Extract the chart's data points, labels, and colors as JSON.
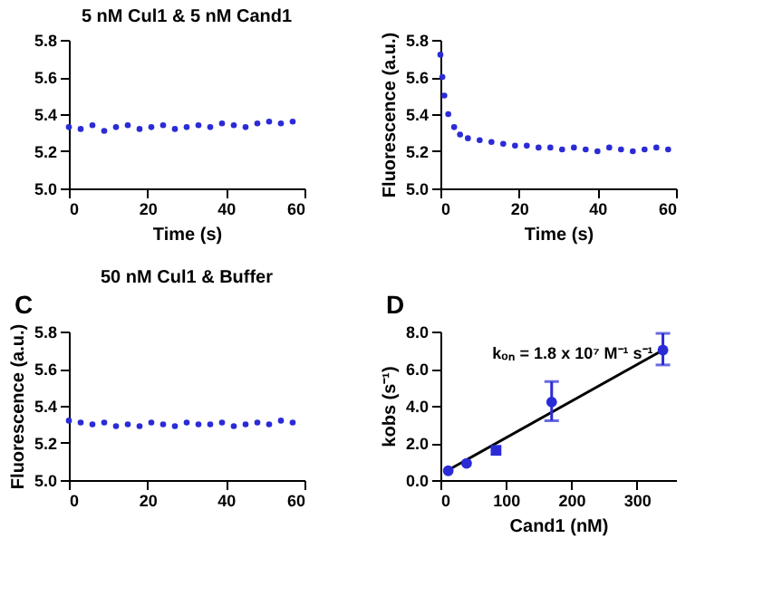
{
  "chart_data": [
    {
      "type": "scatter",
      "title": "5 nM Cul1 & 5 nM Cand1",
      "xlabel": "Time (s)",
      "xlim": [
        0,
        60
      ],
      "xticks": [
        0,
        20,
        40,
        60
      ],
      "ylim": [
        5.0,
        5.8
      ],
      "yticks": [
        {
          "value": 5,
          "label": "5.0"
        },
        5.2,
        5.4,
        5.6,
        5.8
      ],
      "marker": "circle",
      "grid": false,
      "series": [
        {
          "color": "#2b2bd6",
          "x": [
            0,
            3,
            6,
            9,
            12,
            15,
            18,
            21,
            24,
            27,
            30,
            33,
            36,
            39,
            42,
            45,
            48,
            51,
            54,
            57
          ],
          "values": [
            5.33,
            5.32,
            5.34,
            5.31,
            5.33,
            5.34,
            5.32,
            5.33,
            5.34,
            5.32,
            5.33,
            5.34,
            5.33,
            5.35,
            5.34,
            5.33,
            5.35,
            5.36,
            5.35,
            5.36
          ]
        }
      ]
    },
    {
      "type": "scatter",
      "xlabel": "Time (s)",
      "ylabel": "Fluorescence (a.u.)",
      "xlim": [
        0,
        60
      ],
      "xticks": [
        0,
        20,
        40,
        60
      ],
      "ylim": [
        5.0,
        5.8
      ],
      "yticks": [
        {
          "value": 5,
          "label": "5.0"
        },
        5.2,
        5.4,
        5.6,
        5.8
      ],
      "marker": "circle",
      "grid": false,
      "series": [
        {
          "color": "#2b2bd6",
          "x": [
            0,
            0.5,
            1,
            2,
            3.5,
            5,
            7,
            10,
            13,
            16,
            19,
            22,
            25,
            28,
            31,
            34,
            37,
            40,
            43,
            46,
            49,
            52,
            55,
            58
          ],
          "values": [
            5.72,
            5.6,
            5.5,
            5.4,
            5.33,
            5.29,
            5.27,
            5.26,
            5.25,
            5.24,
            5.23,
            5.23,
            5.22,
            5.22,
            5.21,
            5.22,
            5.21,
            5.2,
            5.22,
            5.21,
            5.2,
            5.21,
            5.22,
            5.21
          ]
        }
      ]
    },
    {
      "type": "scatter",
      "title": "50 nM Cul1 & Buffer",
      "ylabel": "Fluorescence (a.u.)",
      "xlim": [
        0,
        60
      ],
      "xticks": [
        0,
        20,
        40,
        60
      ],
      "ylim": [
        5.0,
        5.8
      ],
      "yticks": [
        {
          "value": 5,
          "label": "5.0"
        },
        5.2,
        5.4,
        5.6,
        5.8
      ],
      "marker": "circle",
      "grid": false,
      "annotations": [
        "C"
      ],
      "series": [
        {
          "color": "#2b2bd6",
          "x": [
            0,
            3,
            6,
            9,
            12,
            15,
            18,
            21,
            24,
            27,
            30,
            33,
            36,
            39,
            42,
            45,
            48,
            51,
            54,
            57
          ],
          "values": [
            5.32,
            5.31,
            5.3,
            5.31,
            5.29,
            5.3,
            5.29,
            5.31,
            5.3,
            5.29,
            5.31,
            5.3,
            5.3,
            5.31,
            5.29,
            5.3,
            5.31,
            5.3,
            5.32,
            5.31
          ]
        }
      ]
    },
    {
      "type": "scatter",
      "xlabel": "Cand1 (nM)",
      "ylabel": "kobs (s⁻¹)",
      "xlim": [
        0,
        360
      ],
      "xticks": [
        0,
        100,
        200,
        300
      ],
      "ylim": [
        0,
        8
      ],
      "yticks": [
        {
          "value": 0,
          "label": "0.0"
        },
        {
          "value": 2,
          "label": "2.0"
        },
        {
          "value": 4,
          "label": "4.0"
        },
        {
          "value": 6,
          "label": "6.0"
        },
        {
          "value": 8,
          "label": "8.0"
        }
      ],
      "grid": false,
      "annotations": [
        "D",
        "kₒₙ = 1.8 x 10⁷ M⁻¹ s⁻¹"
      ],
      "series": [
        {
          "type": "line",
          "color": "#000000",
          "marker": "none",
          "line_style": "solid",
          "x": [
            10,
            345
          ],
          "values": [
            0.5,
            7.1
          ]
        },
        {
          "color": "#2b2bd6",
          "marker": "circle",
          "x": [
            12,
            40,
            170,
            340
          ],
          "values": [
            0.5,
            0.9,
            4.2,
            7.0
          ],
          "errors": [
            null,
            null,
            [
              3.2,
              5.3
            ],
            [
              6.2,
              7.9
            ]
          ]
        },
        {
          "color": "#2b2bd6",
          "marker": "square",
          "x": [
            85
          ],
          "values": [
            1.6
          ]
        }
      ]
    }
  ]
}
